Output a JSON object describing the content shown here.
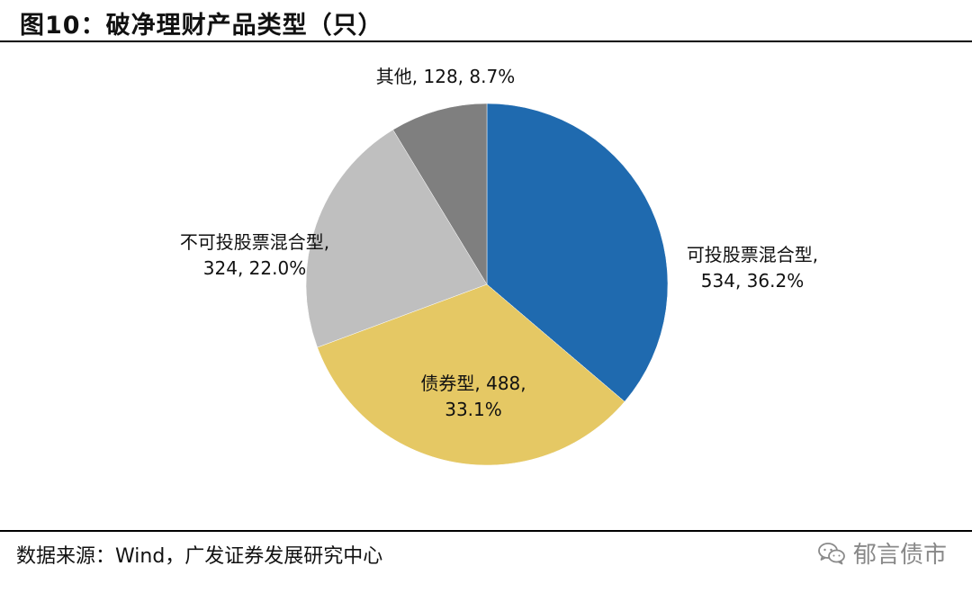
{
  "header": {
    "title": "图10：破净理财产品类型（只）"
  },
  "footer": {
    "source": "数据来源：Wind，广发证券发展研究中心",
    "watermark": "郁言债市",
    "watermark_icon": "wechat-icon"
  },
  "chart_data": {
    "type": "pie",
    "title": "",
    "start_angle_deg": 0,
    "direction": "clockwise",
    "slices": [
      {
        "label_lines": [
          "可投股票混合型,",
          "534, 36.2%"
        ],
        "value": 534,
        "percent": 36.2,
        "color": "#1f6aaf"
      },
      {
        "label_lines": [
          "债券型, 488,",
          "33.1%"
        ],
        "value": 488,
        "percent": 33.1,
        "color": "#e5c864"
      },
      {
        "label_lines": [
          "不可投股票混合型,",
          "324, 22.0%"
        ],
        "value": 324,
        "percent": 22.0,
        "color": "#bfbfbf"
      },
      {
        "label_lines": [
          "其他, 128, 8.7%"
        ],
        "value": 128,
        "percent": 8.7,
        "color": "#7f7f7f"
      }
    ]
  }
}
